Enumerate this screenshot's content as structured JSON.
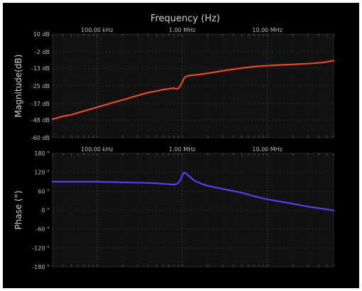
{
  "chart_data": [
    {
      "type": "line",
      "title": "Frequency (Hz)",
      "ylabel": "Magnitude(dB)",
      "x_scale": "log",
      "x_unit": "Hz",
      "xlim": [
        30000,
        60000000
      ],
      "ylim": [
        -60,
        10
      ],
      "x_ticks": [
        {
          "value": 100000,
          "label": "100.00 kHz"
        },
        {
          "value": 1000000,
          "label": "1.00 MHz"
        },
        {
          "value": 10000000,
          "label": "10.00 MHz"
        }
      ],
      "y_ticks": [
        {
          "value": 10,
          "label": "10 dB"
        },
        {
          "value": -2,
          "label": "-2 dB"
        },
        {
          "value": -13,
          "label": "-13 dB"
        },
        {
          "value": -25,
          "label": "-25 dB"
        },
        {
          "value": -37,
          "label": "-37 dB"
        },
        {
          "value": -48,
          "label": "-48 dB"
        },
        {
          "value": -60,
          "label": "-60 dB"
        }
      ],
      "grid": true,
      "series": [
        {
          "color": "#e8492a",
          "x": [
            30000,
            40000,
            50000,
            70000,
            100000,
            150000,
            200000,
            300000,
            400000,
            500000,
            600000,
            700000,
            800000,
            850000,
            900000,
            950000,
            1000000,
            1050000,
            1100000,
            1200000,
            1500000,
            2000000,
            3000000,
            5000000,
            7000000,
            10000000,
            20000000,
            30000000,
            45000000,
            60000000
          ],
          "y": [
            -47.5,
            -45.5,
            -44.5,
            -42,
            -39.5,
            -36.5,
            -34.5,
            -31.5,
            -29.5,
            -28.5,
            -27.5,
            -27,
            -26.5,
            -27,
            -26.8,
            -25,
            -22.5,
            -20,
            -18.7,
            -18,
            -17.5,
            -16.5,
            -14.8,
            -13,
            -12,
            -11.3,
            -10.5,
            -10,
            -9.2,
            -8
          ]
        }
      ]
    },
    {
      "type": "line",
      "ylabel": "Phase (°)",
      "x_scale": "log",
      "x_unit": "Hz",
      "xlim": [
        30000,
        60000000
      ],
      "ylim": [
        -180,
        180
      ],
      "x_ticks": [
        {
          "value": 100000,
          "label": "100.00 kHz"
        },
        {
          "value": 1000000,
          "label": "1.00 MHz"
        },
        {
          "value": 10000000,
          "label": "10.00 MHz"
        }
      ],
      "y_ticks": [
        {
          "value": 180,
          "label": "180 °"
        },
        {
          "value": 120,
          "label": "120 °"
        },
        {
          "value": 60,
          "label": "60 °"
        },
        {
          "value": 0,
          "label": "0 °"
        },
        {
          "value": -60,
          "label": "-60 °"
        },
        {
          "value": -120,
          "label": "-120 °"
        },
        {
          "value": -180,
          "label": "-180 °"
        }
      ],
      "grid": true,
      "series": [
        {
          "color": "#5b3cf2",
          "x": [
            30000,
            50000,
            100000,
            200000,
            300000,
            500000,
            700000,
            800000,
            850000,
            900000,
            950000,
            1000000,
            1050000,
            1100000,
            1200000,
            1400000,
            1700000,
            2000000,
            3000000,
            5000000,
            7000000,
            10000000,
            20000000,
            30000000,
            45000000,
            60000000
          ],
          "y": [
            90,
            90,
            90,
            88,
            87,
            85,
            82,
            81,
            82,
            86,
            95,
            110,
            119,
            117,
            108,
            93,
            83,
            77,
            67,
            55,
            44,
            34,
            20,
            11,
            4,
            -1
          ]
        }
      ]
    }
  ]
}
